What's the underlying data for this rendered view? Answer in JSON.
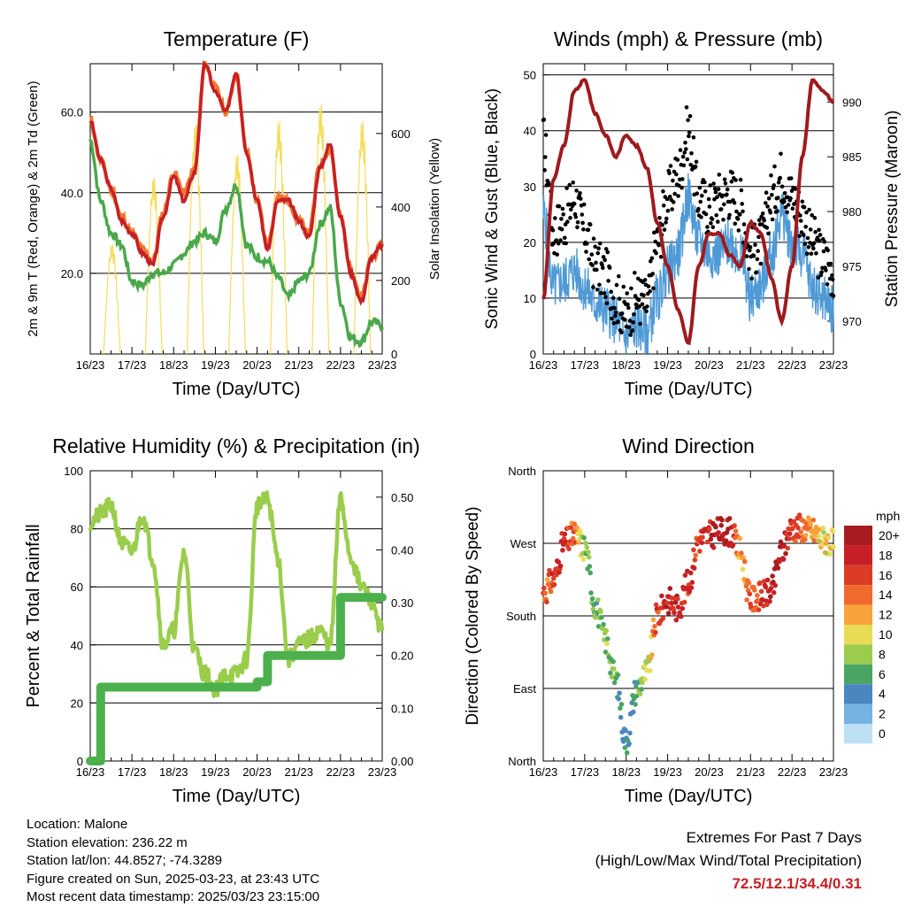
{
  "panels": {
    "temp": {
      "title": "Temperature (F)",
      "ylabel_left": "2m & 9m T (Red, Orange) & 2m Td (Green)",
      "ylabel_right": "Solar Insolation (Yellow)",
      "xlabel": "Time (Day/UTC)",
      "left_ticks": [
        "20.0",
        "40.0",
        "60.0"
      ],
      "right_ticks": [
        "0",
        "200",
        "400",
        "600"
      ]
    },
    "wind": {
      "title": "Winds (mph) & Pressure (mb)",
      "ylabel_left": "Sonic Wind & Gust (Blue, Black)",
      "ylabel_right": "Station Pressure (Maroon)",
      "xlabel": "Time (Day/UTC)",
      "left_ticks": [
        "0",
        "10",
        "20",
        "30",
        "40",
        "50"
      ],
      "right_ticks": [
        "970",
        "975",
        "980",
        "985",
        "990"
      ]
    },
    "rh": {
      "title": "Relative Humidity (%) & Precipitation (in)",
      "ylabel_left": "Percent & Total Rainfall",
      "xlabel": "Time (Day/UTC)",
      "left_ticks": [
        "0",
        "20",
        "40",
        "60",
        "80",
        "100"
      ],
      "right_ticks": [
        "0.00",
        "0.10",
        "0.20",
        "0.30",
        "0.40",
        "0.50"
      ]
    },
    "dir": {
      "title": "Wind Direction",
      "ylabel_left": "Direction (Colored By Speed)",
      "xlabel": "Time (Day/UTC)",
      "left_ticks": [
        "North",
        "East",
        "South",
        "West",
        "North"
      ],
      "legend_title": "mph",
      "legend_labels": [
        "20+",
        "18",
        "16",
        "14",
        "12",
        "10",
        "8",
        "6",
        "4",
        "2",
        "0"
      ],
      "legend_colors": [
        "#a81c1f",
        "#c62026",
        "#dc3b26",
        "#ef6a2c",
        "#f9a23b",
        "#e8dc55",
        "#9ccc4e",
        "#4aa463",
        "#4a87c1",
        "#76b3e0",
        "#bde0f5"
      ]
    }
  },
  "x_ticks": [
    "16/23",
    "17/23",
    "18/23",
    "19/23",
    "20/23",
    "21/23",
    "22/23",
    "23/23"
  ],
  "colors": {
    "temp2m": "#c62026",
    "temp9m": "#f07830",
    "dewpoint": "#4aa84a",
    "solar": "#f6dc5a",
    "wind": "#4f9ad6",
    "gust": "#000000",
    "pressure": "#9e1b1e",
    "rh": "#9acd4c",
    "precip": "#4cb04c"
  },
  "chart_data": [
    {
      "type": "line",
      "title": "Temperature (F)",
      "xlabel": "Time (Day/UTC)",
      "ylabel": "2m & 9m T (Red, Orange) & 2m Td (Green)",
      "y2label": "Solar Insolation (Yellow)",
      "x": [
        16.0,
        16.25,
        16.5,
        16.75,
        17.0,
        17.25,
        17.5,
        17.75,
        18.0,
        18.25,
        18.5,
        18.75,
        19.0,
        19.25,
        19.5,
        19.75,
        20.0,
        20.25,
        20.5,
        20.75,
        21.0,
        21.25,
        21.5,
        21.75,
        22.0,
        22.25,
        22.5,
        22.75,
        23.0
      ],
      "series": [
        {
          "name": "2m T",
          "values": [
            58,
            48,
            41,
            33,
            30,
            25,
            22,
            34,
            44,
            38,
            45,
            72,
            65,
            60,
            70,
            50,
            38,
            26,
            38,
            38,
            33,
            29,
            46,
            52,
            34,
            20,
            13,
            24,
            27
          ]
        },
        {
          "name": "9m T",
          "values": [
            58,
            48,
            41,
            34,
            30,
            26,
            23,
            35,
            45,
            40,
            46,
            72,
            66,
            60,
            69,
            50,
            38,
            27,
            39,
            38,
            33,
            30,
            47,
            51,
            34,
            21,
            14,
            24,
            27
          ]
        },
        {
          "name": "2m Td",
          "values": [
            53,
            38,
            30,
            27,
            18,
            17,
            20,
            20,
            22,
            25,
            28,
            30,
            28,
            36,
            42,
            27,
            24,
            23,
            19,
            14,
            18,
            20,
            32,
            36,
            13,
            4,
            3,
            8,
            7
          ]
        },
        {
          "name": "Solar Insolation",
          "axis": "right",
          "values": [
            0,
            0,
            330,
            0,
            0,
            0,
            530,
            0,
            0,
            0,
            690,
            0,
            0,
            0,
            600,
            0,
            0,
            0,
            700,
            0,
            0,
            0,
            750,
            0,
            0,
            0,
            700,
            0,
            0
          ]
        }
      ],
      "ylim": [
        0,
        72
      ],
      "y2lim": [
        0,
        790
      ]
    },
    {
      "type": "line",
      "title": "Winds (mph) & Pressure (mb)",
      "xlabel": "Time (Day/UTC)",
      "ylabel": "Sonic Wind & Gust (Blue, Black)",
      "y2label": "Station Pressure (Maroon)",
      "x": [
        16.0,
        16.25,
        16.5,
        16.75,
        17.0,
        17.25,
        17.5,
        17.75,
        18.0,
        18.25,
        18.5,
        18.75,
        19.0,
        19.25,
        19.5,
        19.75,
        20.0,
        20.25,
        20.5,
        20.75,
        21.0,
        21.25,
        21.5,
        21.75,
        22.0,
        22.25,
        22.5,
        22.75,
        23.0
      ],
      "series": [
        {
          "name": "Sonic Wind",
          "values": [
            25,
            12,
            13,
            15,
            12,
            9,
            8,
            6,
            3,
            5,
            4,
            10,
            15,
            18,
            28,
            20,
            18,
            18,
            20,
            18,
            10,
            12,
            18,
            25,
            20,
            18,
            12,
            10,
            8
          ]
        },
        {
          "name": "Gust",
          "values": [
            38,
            22,
            24,
            28,
            22,
            16,
            14,
            10,
            7,
            10,
            9,
            20,
            28,
            32,
            40,
            28,
            26,
            28,
            29,
            27,
            18,
            20,
            28,
            32,
            28,
            25,
            20,
            17,
            15
          ]
        },
        {
          "name": "Station Pressure",
          "axis": "right",
          "values": [
            972,
            983,
            986,
            991,
            992,
            989,
            987,
            985,
            987,
            986,
            984,
            979,
            975,
            971,
            968,
            975,
            978,
            978,
            976,
            975,
            979,
            978,
            974,
            970,
            975,
            985,
            992,
            991,
            990
          ]
        }
      ],
      "ylim": [
        0,
        52
      ],
      "y2lim": [
        967,
        993.5
      ]
    },
    {
      "type": "line",
      "title": "Relative Humidity (%) & Precipitation (in)",
      "xlabel": "Time (Day/UTC)",
      "ylabel": "Percent & Total Rainfall",
      "x": [
        16.0,
        16.25,
        16.5,
        16.75,
        17.0,
        17.25,
        17.5,
        17.75,
        18.0,
        18.25,
        18.5,
        18.75,
        19.0,
        19.25,
        19.5,
        19.75,
        20.0,
        20.25,
        20.5,
        20.75,
        21.0,
        21.25,
        21.5,
        21.75,
        22.0,
        22.25,
        22.5,
        22.75,
        23.0
      ],
      "series": [
        {
          "name": "Relative Humidity",
          "values": [
            82,
            85,
            88,
            75,
            72,
            85,
            70,
            40,
            45,
            72,
            38,
            30,
            25,
            30,
            30,
            35,
            88,
            90,
            70,
            35,
            40,
            42,
            45,
            40,
            90,
            70,
            60,
            55,
            45
          ]
        },
        {
          "name": "Total Precipitation",
          "axis": "right",
          "values": [
            0.0,
            0.14,
            0.14,
            0.14,
            0.14,
            0.14,
            0.14,
            0.14,
            0.14,
            0.14,
            0.14,
            0.14,
            0.14,
            0.14,
            0.14,
            0.14,
            0.15,
            0.2,
            0.2,
            0.2,
            0.2,
            0.2,
            0.2,
            0.2,
            0.31,
            0.31,
            0.31,
            0.31,
            0.31
          ]
        }
      ],
      "ylim": [
        0,
        100
      ],
      "y2lim": [
        0,
        0.55
      ]
    },
    {
      "type": "scatter",
      "title": "Wind Direction",
      "xlabel": "Time (Day/UTC)",
      "ylabel": "Direction (Colored By Speed)",
      "x": [
        16.0,
        16.25,
        16.5,
        16.75,
        17.0,
        17.25,
        17.5,
        17.75,
        18.0,
        18.25,
        18.5,
        18.75,
        19.0,
        19.25,
        19.5,
        19.75,
        20.0,
        20.25,
        20.5,
        20.75,
        21.0,
        21.25,
        21.5,
        21.75,
        22.0,
        22.25,
        22.5,
        22.75,
        23.0
      ],
      "direction_deg": [
        210,
        225,
        270,
        280,
        265,
        195,
        150,
        100,
        25,
        90,
        110,
        180,
        200,
        190,
        220,
        275,
        280,
        285,
        285,
        260,
        200,
        205,
        210,
        260,
        290,
        290,
        285,
        275,
        270
      ],
      "speed_mph": [
        14,
        16,
        18,
        14,
        8,
        6,
        8,
        6,
        4,
        6,
        8,
        16,
        18,
        18,
        16,
        16,
        18,
        20,
        20,
        12,
        14,
        16,
        18,
        20,
        16,
        14,
        12,
        10,
        10
      ],
      "ylim_labels": [
        "North",
        "East",
        "South",
        "West",
        "North"
      ],
      "colorbar": "mph"
    }
  ],
  "footer": {
    "location": "Location: Malone",
    "elevation": "Station elevation: 236.22 m",
    "latlon": "Station lat/lon: 44.8527; -74.3289",
    "created": "Figure created on Sun, 2025-03-23, at 23:43 UTC",
    "latest": "Most recent data timestamp: 2025/03/23 23:15:00"
  },
  "extremes": {
    "title": "Extremes For Past 7 Days",
    "subtitle": "(High/Low/Max Wind/Total Precipitation)",
    "values": "72.5/12.1/34.4/0.31"
  }
}
